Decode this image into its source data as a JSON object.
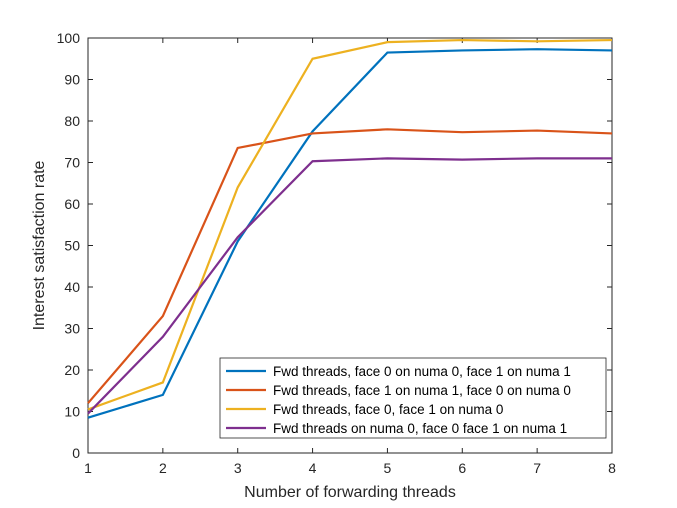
{
  "chart_data": {
    "type": "line",
    "title": "",
    "xlabel": "Number of forwarding threads",
    "ylabel": "Interest satisfaction rate",
    "x": [
      1,
      2,
      3,
      4,
      5,
      6,
      7,
      8
    ],
    "xlim": [
      1,
      8
    ],
    "ylim": [
      0,
      100
    ],
    "xticks": [
      1,
      2,
      3,
      4,
      5,
      6,
      7,
      8
    ],
    "yticks": [
      0,
      10,
      20,
      30,
      40,
      50,
      60,
      70,
      80,
      90,
      100
    ],
    "grid": false,
    "legend_position": "bottom-right",
    "series": [
      {
        "name": "Fwd threads, face 0 on numa 0, face 1 on numa 1",
        "color": "#0072BD",
        "values": [
          8.5,
          14,
          51,
          77.5,
          96.5,
          97,
          97.3,
          97
        ]
      },
      {
        "name": "Fwd threads, face 1 on numa 1, face 0 on numa 0",
        "color": "#D95319",
        "values": [
          12,
          33,
          73.5,
          77,
          78,
          77.3,
          77.7,
          77
        ]
      },
      {
        "name": "Fwd threads, face 0, face 1 on numa 0",
        "color": "#EDB120",
        "values": [
          10.5,
          17,
          64,
          95,
          99,
          99.5,
          99.2,
          99.5
        ]
      },
      {
        "name": "Fwd threads on numa 0, face 0 face 1 on numa 1",
        "color": "#7E2F8E",
        "values": [
          9.5,
          28,
          52,
          70.3,
          71,
          70.7,
          71,
          71
        ]
      }
    ]
  }
}
